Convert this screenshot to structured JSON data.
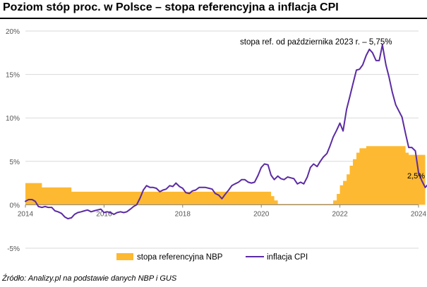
{
  "title": "Poziom stóp proc. w Polsce – stopa referencyjna a inflacja CPI",
  "source": "Źródło: Analizy.pl na podstawie danych NBP i GUS",
  "chart_data": {
    "type": "area+line",
    "title": "Poziom stóp proc. w Polsce – stopa referencyjna a inflacja CPI",
    "xlabel": "",
    "ylabel": "",
    "xlim": [
      2014,
      2024
    ],
    "ylim": [
      -5,
      20
    ],
    "x_ticks": [
      2014,
      2016,
      2018,
      2020,
      2022,
      2024
    ],
    "y_ticks": [
      -5,
      0,
      5,
      10,
      15,
      20
    ],
    "y_tick_labels": [
      "-5%",
      "0%",
      "5%",
      "10%",
      "15%",
      "20%"
    ],
    "grid": "horizontal",
    "colors": {
      "rate": "#FDB931",
      "cpi": "#5B2BA3",
      "grid": "#D9D9D9",
      "axis": "#808080"
    },
    "legend": [
      {
        "name": "stopa referencyjna NBP",
        "kind": "area"
      },
      {
        "name": "inflacja CPI",
        "kind": "line"
      }
    ],
    "annotations": [
      {
        "text": "stopa ref. od października  2023 r. – 5,75%"
      },
      {
        "text": "2,5%"
      }
    ],
    "series": [
      {
        "name": "stopa referencyjna NBP",
        "kind": "step-area",
        "points": [
          [
            2014.0,
            2.5
          ],
          [
            2014.42,
            2.0
          ],
          [
            2014.83,
            2.0
          ],
          [
            2015.17,
            1.5
          ],
          [
            2020.17,
            1.5
          ],
          [
            2020.25,
            1.0
          ],
          [
            2020.33,
            0.5
          ],
          [
            2020.42,
            0.1
          ],
          [
            2021.75,
            0.1
          ],
          [
            2021.83,
            0.5
          ],
          [
            2021.92,
            1.25
          ],
          [
            2022.0,
            2.25
          ],
          [
            2022.08,
            2.75
          ],
          [
            2022.17,
            3.5
          ],
          [
            2022.25,
            4.5
          ],
          [
            2022.33,
            5.25
          ],
          [
            2022.42,
            6.0
          ],
          [
            2022.5,
            6.5
          ],
          [
            2022.67,
            6.75
          ],
          [
            2023.67,
            6.0
          ],
          [
            2023.75,
            5.75
          ],
          [
            2024.17,
            5.75
          ]
        ]
      },
      {
        "name": "inflacja CPI",
        "kind": "line",
        "points": [
          [
            2014.0,
            0.4
          ],
          [
            2014.08,
            0.6
          ],
          [
            2014.17,
            0.6
          ],
          [
            2014.25,
            0.4
          ],
          [
            2014.33,
            -0.2
          ],
          [
            2014.42,
            -0.3
          ],
          [
            2014.5,
            -0.2
          ],
          [
            2014.58,
            -0.3
          ],
          [
            2014.67,
            -0.3
          ],
          [
            2014.75,
            -0.7
          ],
          [
            2014.83,
            -0.8
          ],
          [
            2014.92,
            -1.0
          ],
          [
            2015.0,
            -1.4
          ],
          [
            2015.08,
            -1.6
          ],
          [
            2015.17,
            -1.5
          ],
          [
            2015.25,
            -1.1
          ],
          [
            2015.33,
            -0.9
          ],
          [
            2015.42,
            -0.8
          ],
          [
            2015.5,
            -0.7
          ],
          [
            2015.58,
            -0.6
          ],
          [
            2015.67,
            -0.8
          ],
          [
            2015.75,
            -0.7
          ],
          [
            2015.83,
            -0.6
          ],
          [
            2015.92,
            -0.5
          ],
          [
            2016.0,
            -0.9
          ],
          [
            2016.08,
            -0.8
          ],
          [
            2016.17,
            -0.9
          ],
          [
            2016.25,
            -1.1
          ],
          [
            2016.33,
            -0.9
          ],
          [
            2016.42,
            -0.8
          ],
          [
            2016.5,
            -0.9
          ],
          [
            2016.58,
            -0.8
          ],
          [
            2016.67,
            -0.5
          ],
          [
            2016.75,
            -0.2
          ],
          [
            2016.83,
            0.0
          ],
          [
            2016.92,
            0.8
          ],
          [
            2017.0,
            1.7
          ],
          [
            2017.08,
            2.2
          ],
          [
            2017.17,
            2.0
          ],
          [
            2017.25,
            2.0
          ],
          [
            2017.33,
            1.9
          ],
          [
            2017.42,
            1.5
          ],
          [
            2017.5,
            1.7
          ],
          [
            2017.58,
            1.8
          ],
          [
            2017.67,
            2.2
          ],
          [
            2017.75,
            2.1
          ],
          [
            2017.83,
            2.5
          ],
          [
            2017.92,
            2.1
          ],
          [
            2018.0,
            1.9
          ],
          [
            2018.08,
            1.4
          ],
          [
            2018.17,
            1.3
          ],
          [
            2018.25,
            1.6
          ],
          [
            2018.33,
            1.7
          ],
          [
            2018.42,
            2.0
          ],
          [
            2018.5,
            2.0
          ],
          [
            2018.58,
            2.0
          ],
          [
            2018.67,
            1.9
          ],
          [
            2018.75,
            1.8
          ],
          [
            2018.83,
            1.3
          ],
          [
            2018.92,
            1.1
          ],
          [
            2019.0,
            0.7
          ],
          [
            2019.08,
            1.2
          ],
          [
            2019.17,
            1.7
          ],
          [
            2019.25,
            2.2
          ],
          [
            2019.33,
            2.4
          ],
          [
            2019.42,
            2.6
          ],
          [
            2019.5,
            2.9
          ],
          [
            2019.58,
            2.9
          ],
          [
            2019.67,
            2.6
          ],
          [
            2019.75,
            2.5
          ],
          [
            2019.83,
            2.6
          ],
          [
            2019.92,
            3.4
          ],
          [
            2020.0,
            4.3
          ],
          [
            2020.08,
            4.7
          ],
          [
            2020.17,
            4.6
          ],
          [
            2020.25,
            3.4
          ],
          [
            2020.33,
            2.9
          ],
          [
            2020.42,
            3.3
          ],
          [
            2020.5,
            3.0
          ],
          [
            2020.58,
            2.9
          ],
          [
            2020.67,
            3.2
          ],
          [
            2020.75,
            3.1
          ],
          [
            2020.83,
            3.0
          ],
          [
            2020.92,
            2.4
          ],
          [
            2021.0,
            2.6
          ],
          [
            2021.08,
            2.4
          ],
          [
            2021.17,
            3.2
          ],
          [
            2021.25,
            4.3
          ],
          [
            2021.33,
            4.7
          ],
          [
            2021.42,
            4.4
          ],
          [
            2021.5,
            5.0
          ],
          [
            2021.58,
            5.5
          ],
          [
            2021.67,
            5.9
          ],
          [
            2021.75,
            6.8
          ],
          [
            2021.83,
            7.8
          ],
          [
            2021.92,
            8.6
          ],
          [
            2022.0,
            9.4
          ],
          [
            2022.08,
            8.5
          ],
          [
            2022.17,
            11.0
          ],
          [
            2022.25,
            12.4
          ],
          [
            2022.33,
            13.9
          ],
          [
            2022.42,
            15.5
          ],
          [
            2022.5,
            15.6
          ],
          [
            2022.58,
            16.1
          ],
          [
            2022.67,
            17.2
          ],
          [
            2022.75,
            17.9
          ],
          [
            2022.83,
            17.5
          ],
          [
            2022.92,
            16.6
          ],
          [
            2023.0,
            16.6
          ],
          [
            2023.08,
            18.4
          ],
          [
            2023.17,
            16.1
          ],
          [
            2023.25,
            14.7
          ],
          [
            2023.33,
            13.0
          ],
          [
            2023.42,
            11.5
          ],
          [
            2023.5,
            10.8
          ],
          [
            2023.58,
            10.1
          ],
          [
            2023.67,
            8.2
          ],
          [
            2023.75,
            6.6
          ],
          [
            2023.83,
            6.6
          ],
          [
            2023.92,
            6.2
          ],
          [
            2024.0,
            3.7
          ],
          [
            2024.08,
            2.8
          ],
          [
            2024.17,
            2.0
          ],
          [
            2024.25,
            2.4
          ],
          [
            2024.33,
            2.5
          ]
        ]
      }
    ]
  }
}
